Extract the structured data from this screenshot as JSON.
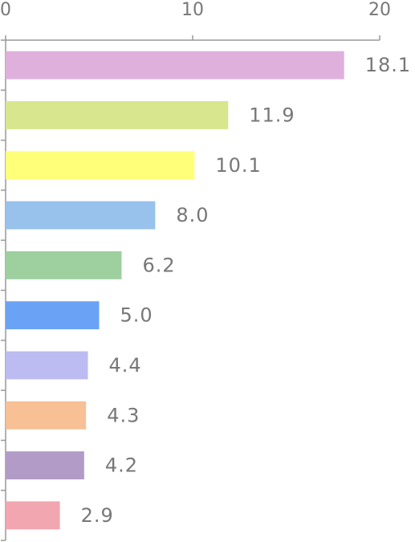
{
  "chart_data": {
    "type": "barh",
    "categories": [
      null,
      null,
      null,
      null,
      null,
      null,
      null,
      null,
      null,
      null
    ],
    "values": [
      18.1,
      11.9,
      10.1,
      8,
      6.2,
      5,
      4.4,
      4.3,
      4.2,
      2.9
    ],
    "value_labels": [
      "18.1",
      "11.9",
      "10.1",
      "8.0",
      "6.2",
      "5.0",
      "4.4",
      "4.3",
      "4.2",
      "2.9"
    ],
    "colors": [
      "#e0b0dd",
      "#d8e68e",
      "#ffff7a",
      "#98c1ec",
      "#9dcf9f",
      "#6aa2f5",
      "#bcbcf2",
      "#f7c095",
      "#b29cc7",
      "#f2a6b0"
    ],
    "xlim": [
      0,
      20
    ],
    "xticks": [
      0,
      10,
      20
    ]
  }
}
